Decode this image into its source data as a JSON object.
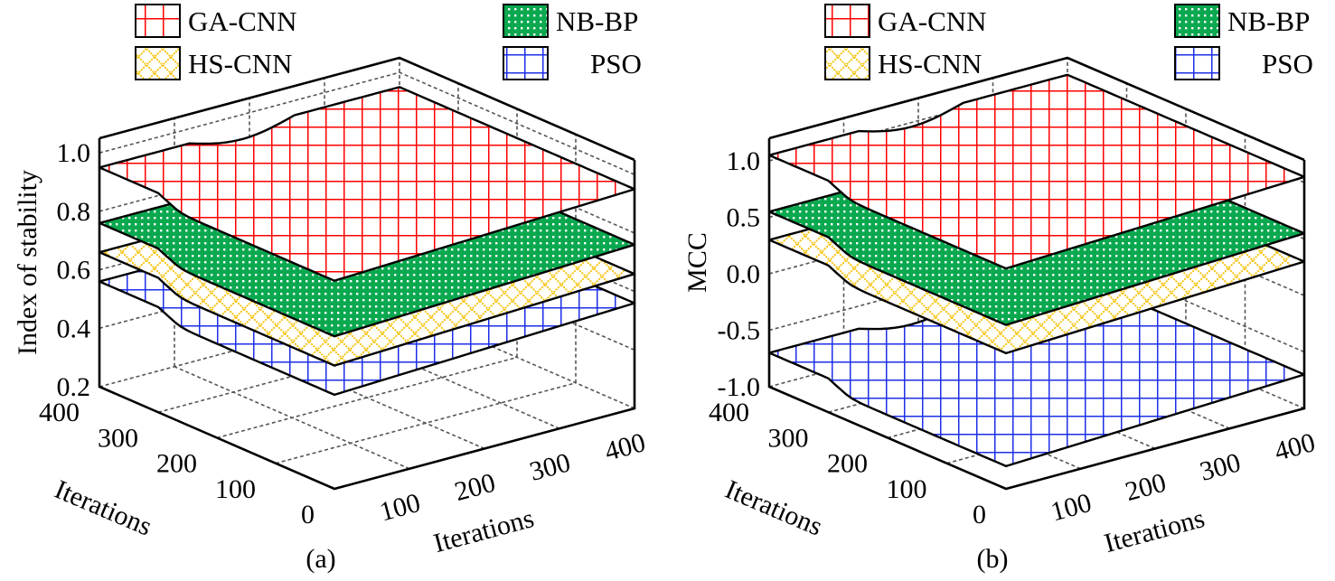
{
  "chart_data": [
    {
      "panel_label": "(a)",
      "type": "surface3d",
      "zlabel": "Index of stability",
      "xlabel": "Iterations",
      "ylabel": "Iterations",
      "x_ticks": [
        "100",
        "200",
        "300",
        "400"
      ],
      "y_ticks": [
        "0",
        "100",
        "200",
        "300",
        "400"
      ],
      "z_ticks": [
        "0.2",
        "0.4",
        "0.6",
        "0.8",
        "1.0"
      ],
      "z_tick_values": [
        0.2,
        0.4,
        0.6,
        0.8,
        1.0
      ],
      "zlim": [
        0.2,
        1.05
      ],
      "xlim": [
        0,
        400
      ],
      "ylim": [
        0,
        400
      ],
      "grid": true,
      "legend_position": "top",
      "series": [
        {
          "name": "GA-CNN",
          "level": 0.95,
          "pattern": "grid",
          "color": "#ff0000"
        },
        {
          "name": "NB-BP",
          "level": 0.76,
          "pattern": "dots",
          "color": "#0aa84f"
        },
        {
          "name": "HS-CNN",
          "level": 0.66,
          "pattern": "diamond",
          "color": "#f5c000"
        },
        {
          "name": "PSO",
          "level": 0.56,
          "pattern": "grid",
          "color": "#1e2fe8"
        }
      ]
    },
    {
      "panel_label": "(b)",
      "type": "surface3d",
      "zlabel": "MCC",
      "xlabel": "Iterations",
      "ylabel": "Iterations",
      "x_ticks": [
        "100",
        "200",
        "300",
        "400"
      ],
      "y_ticks": [
        "0",
        "100",
        "200",
        "300",
        "400"
      ],
      "z_ticks": [
        "-1.0",
        "-0.5",
        "0.0",
        "0.5",
        "1.0"
      ],
      "z_tick_values": [
        -1.0,
        -0.5,
        0.0,
        0.5,
        1.0
      ],
      "zlim": [
        -1.0,
        1.2
      ],
      "xlim": [
        0,
        400
      ],
      "ylim": [
        0,
        400
      ],
      "grid": true,
      "legend_position": "top",
      "series": [
        {
          "name": "GA-CNN",
          "level": 1.05,
          "pattern": "grid",
          "color": "#ff0000"
        },
        {
          "name": "NB-BP",
          "level": 0.55,
          "pattern": "dots",
          "color": "#0aa84f"
        },
        {
          "name": "HS-CNN",
          "level": 0.3,
          "pattern": "diamond",
          "color": "#f5c000"
        },
        {
          "name": "PSO",
          "level": -0.7,
          "pattern": "grid",
          "color": "#1e2fe8"
        }
      ]
    }
  ]
}
